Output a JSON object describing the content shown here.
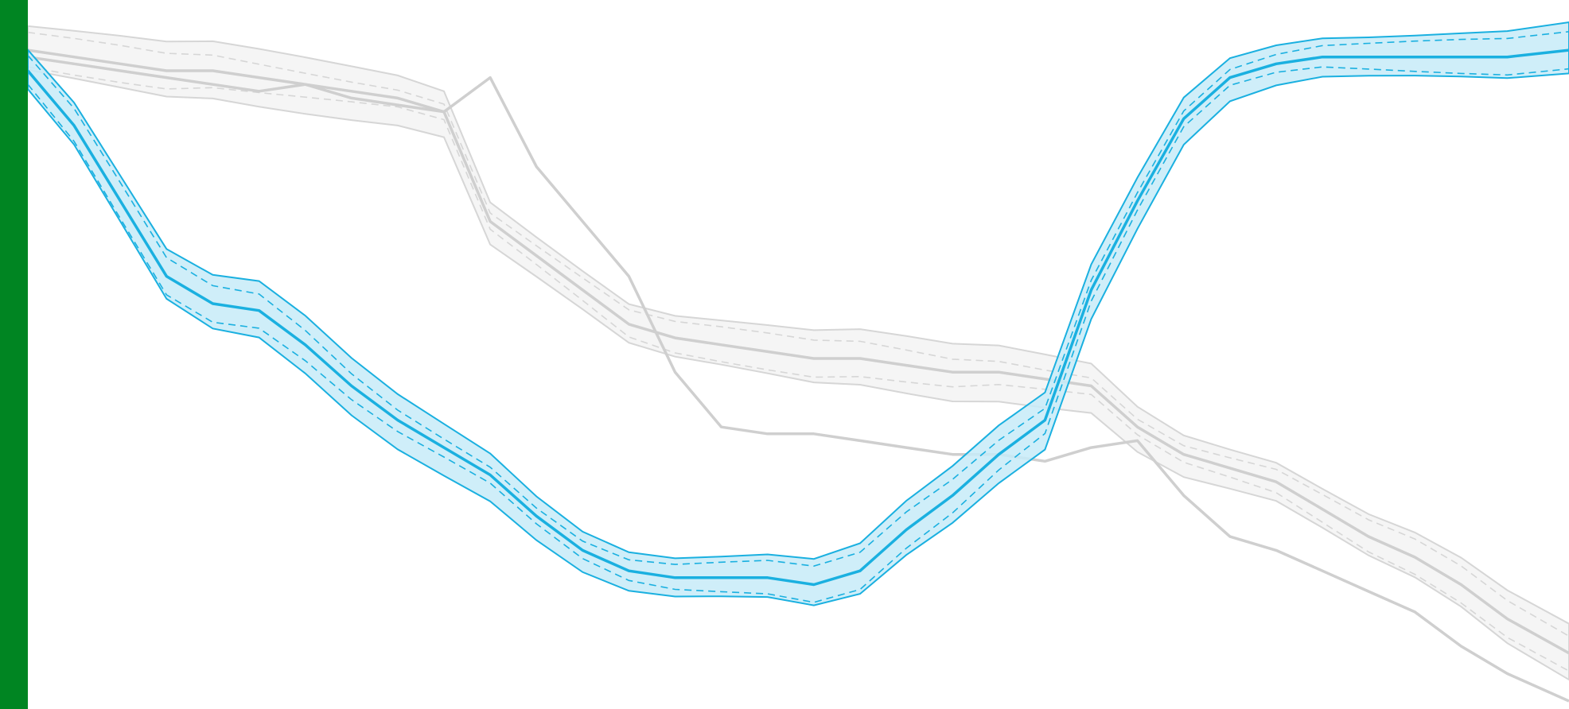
{
  "accent_bar_color": "#008522",
  "colors": {
    "highlight_line": "#1ab0e0",
    "highlight_band_fill": "#c7ebf8",
    "highlight_band_edge": "#1ab0e0",
    "context_line": "#cfcfcf",
    "context_band_fill": "#f4f4f4",
    "context_band_edge": "#d6d6d6"
  },
  "chart_data": {
    "type": "line",
    "xlim": [
      0,
      100
    ],
    "ylim": [
      0,
      100
    ],
    "grid": false,
    "legend": "none",
    "series": [
      {
        "id": "highlight",
        "style": "highlighted",
        "x": [
          0,
          3,
          6,
          9,
          12,
          15,
          18,
          21,
          24,
          27,
          30,
          33,
          36,
          39,
          42,
          45,
          48,
          51,
          54,
          57,
          60,
          63,
          66,
          69,
          72,
          75,
          78,
          81,
          84,
          87,
          90,
          93,
          96,
          100
        ],
        "y": [
          92,
          84,
          73,
          62,
          58,
          57,
          52,
          46,
          41,
          37,
          33,
          27,
          22,
          19,
          18,
          18,
          18,
          17,
          19,
          25,
          30,
          36,
          41,
          60,
          73,
          85,
          91,
          93,
          94,
          94,
          94,
          94,
          94,
          95
        ],
        "band_width": 3.5
      },
      {
        "id": "context-a",
        "style": "context",
        "x": [
          0,
          3,
          6,
          9,
          12,
          15,
          18,
          21,
          24,
          27,
          30,
          33,
          36,
          39,
          42,
          45,
          48,
          51,
          54,
          57,
          60,
          63,
          66,
          69,
          72,
          75,
          78,
          81,
          84,
          87,
          90,
          93,
          96,
          100
        ],
        "y": [
          95,
          94,
          93,
          92,
          92,
          91,
          90,
          89,
          88,
          86,
          70,
          65,
          60,
          55,
          53,
          52,
          51,
          50,
          50,
          49,
          48,
          48,
          47,
          46,
          40,
          36,
          34,
          32,
          28,
          24,
          21,
          17,
          12,
          7
        ],
        "band_width": 3.5
      },
      {
        "id": "context-b",
        "style": "context",
        "x": [
          0,
          3,
          6,
          9,
          12,
          15,
          18,
          21,
          24,
          27,
          30,
          33,
          36,
          39,
          42,
          45,
          48,
          51,
          54,
          57,
          60,
          63,
          66,
          69,
          72,
          75,
          78,
          81,
          84,
          87,
          90,
          93,
          96,
          100
        ],
        "y": [
          94,
          93,
          92,
          91,
          90,
          89,
          90,
          88,
          87,
          86,
          91,
          78,
          70,
          62,
          48,
          40,
          39,
          39,
          38,
          37,
          36,
          36,
          35,
          37,
          38,
          30,
          24,
          22,
          19,
          16,
          13,
          8,
          4,
          0
        ],
        "band_width": 0
      }
    ]
  }
}
